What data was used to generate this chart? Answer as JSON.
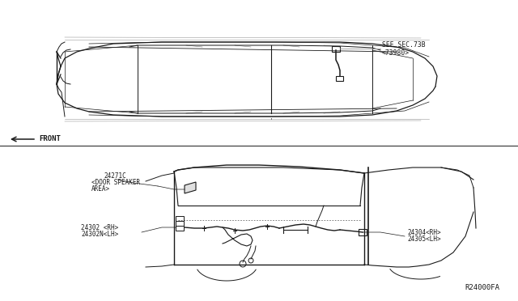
{
  "bg_color": "#ffffff",
  "line_color": "#1a1a1a",
  "gray_color": "#999999",
  "watermark": "R24000FA",
  "labels": {
    "see_sec": "SEE SEC.73B",
    "see_sec2": "<73980>",
    "front": "FRONT",
    "part1": "24271C",
    "part1b": "<DOOR SPEAKER",
    "part1c": "AREA>",
    "part2a": "24302 <RH>",
    "part2b": "24302N<LH>",
    "part3a": "24304<RH>",
    "part3b": "24305<LH>"
  },
  "fig_width": 6.4,
  "fig_height": 3.72,
  "dpi": 100
}
